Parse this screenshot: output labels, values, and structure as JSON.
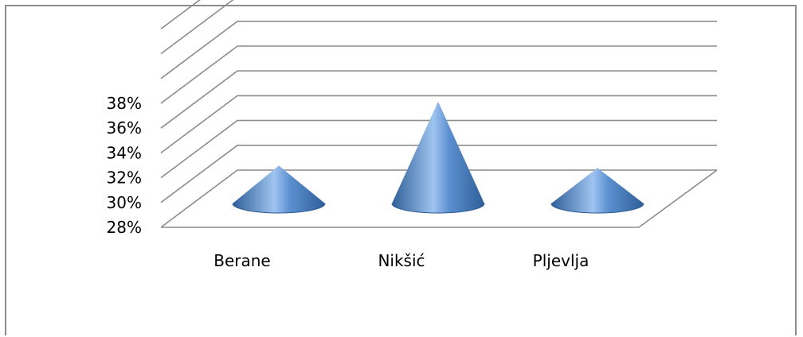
{
  "chart_data": {
    "type": "bar",
    "variant": "3d-cone",
    "categories": [
      "Berane",
      "Nikšić",
      "Pljevlja"
    ],
    "values": [
      31.2,
      36.6,
      31.0
    ],
    "ylim": [
      28,
      38
    ],
    "yticks": [
      "28%",
      "30%",
      "32%",
      "34%",
      "36%",
      "38%"
    ],
    "grid": true,
    "legend": "none",
    "colors": {
      "cone": "#4f81bd",
      "grid": "#8c8c8c"
    }
  }
}
